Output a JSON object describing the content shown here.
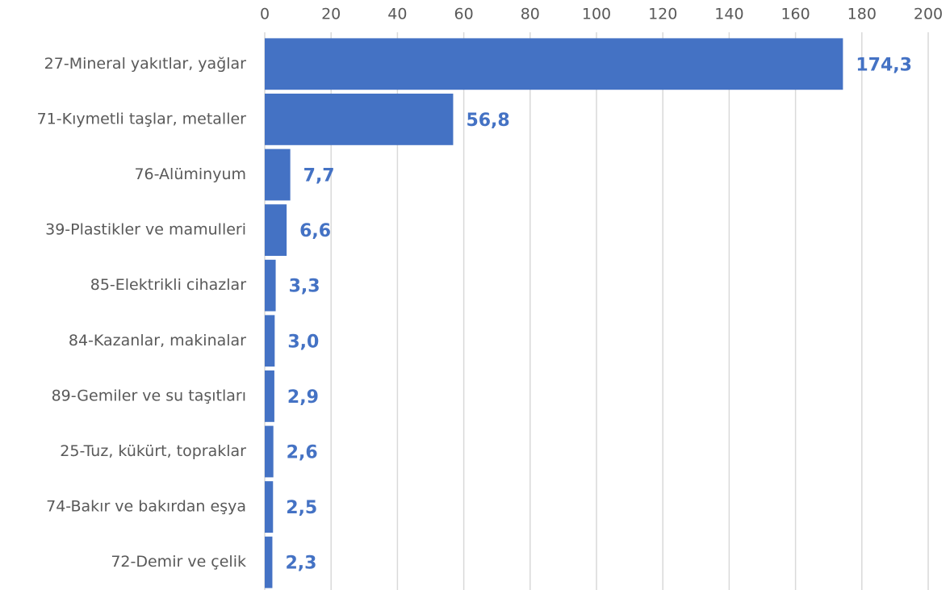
{
  "chart_data": {
    "type": "bar",
    "orientation": "horizontal",
    "categories": [
      "27-Mineral yakıtlar, yağlar",
      "71-Kıymetli taşlar, metaller",
      "76-Alüminyum",
      "39-Plastikler ve mamulleri",
      "85-Elektrikli cihazlar",
      "84-Kazanlar, makinalar",
      "89-Gemiler ve su taşıtları",
      "25-Tuz, kükürt, topraklar",
      "74-Bakır ve bakırdan eşya",
      "72-Demir ve çelik"
    ],
    "values": [
      174.3,
      56.8,
      7.7,
      6.6,
      3.3,
      3.0,
      2.9,
      2.6,
      2.5,
      2.3
    ],
    "value_labels": [
      "174,3",
      "56,8",
      "7,7",
      "6,6",
      "3,3",
      "3,0",
      "2,9",
      "2,6",
      "2,5",
      "2,3"
    ],
    "color": "#4472c4",
    "xlim": [
      0,
      200
    ],
    "xticks": [
      0,
      20,
      40,
      60,
      80,
      100,
      120,
      140,
      160,
      180,
      200
    ],
    "grid": true
  }
}
